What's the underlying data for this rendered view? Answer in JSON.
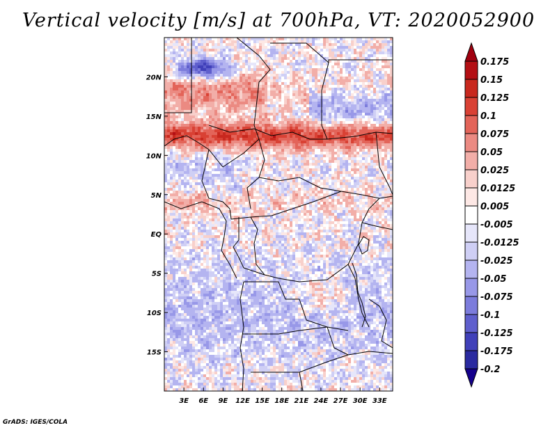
{
  "chart_data": {
    "type": "heatmap",
    "title": "Vertical velocity [m/s] at 700hPa, VT: 2020052900",
    "variable": "Vertical velocity",
    "units": "m/s",
    "level": "700hPa",
    "valid_time": "2020052900",
    "x_tick_labels": [
      "3E",
      "6E",
      "9E",
      "12E",
      "15E",
      "18E",
      "21E",
      "24E",
      "27E",
      "30E",
      "33E"
    ],
    "x_tick_values": [
      3,
      6,
      9,
      12,
      15,
      18,
      21,
      24,
      27,
      30,
      33
    ],
    "y_tick_labels": [
      "20N",
      "15N",
      "10N",
      "5N",
      "EQ",
      "5S",
      "10S",
      "15S"
    ],
    "y_tick_values": [
      20,
      15,
      10,
      5,
      0,
      -5,
      -10,
      -15
    ],
    "xlim": [
      0,
      35
    ],
    "ylim": [
      -20,
      25
    ],
    "colorbar_levels": [
      0.175,
      0.15,
      0.125,
      0.1,
      0.075,
      0.05,
      0.025,
      0.0125,
      0.005,
      -0.005,
      -0.0125,
      -0.025,
      -0.05,
      -0.075,
      -0.1,
      -0.125,
      -0.175,
      -0.2
    ],
    "colorbar_labels": [
      "0.175",
      "0.15",
      "0.125",
      "0.1",
      "0.075",
      "0.05",
      "0.025",
      "0.0125",
      "0.005",
      "-0.005",
      "-0.0125",
      "-0.025",
      "-0.05",
      "-0.075",
      "-0.1",
      "-0.125",
      "-0.175",
      "-0.2"
    ],
    "colorbar_colors": [
      "#a0000f",
      "#b40f14",
      "#c8281e",
      "#d94134",
      "#e36459",
      "#eb8a82",
      "#f2aea8",
      "#f8d0cb",
      "#fde8e5",
      "#ffffff",
      "#e6e6fa",
      "#cfcff5",
      "#b4b4f0",
      "#9898e8",
      "#7c7cdc",
      "#5f5fcd",
      "#4040b9",
      "#2a2aa0",
      "#14008c"
    ]
  },
  "credit": "GrADS: IGES/COLA"
}
